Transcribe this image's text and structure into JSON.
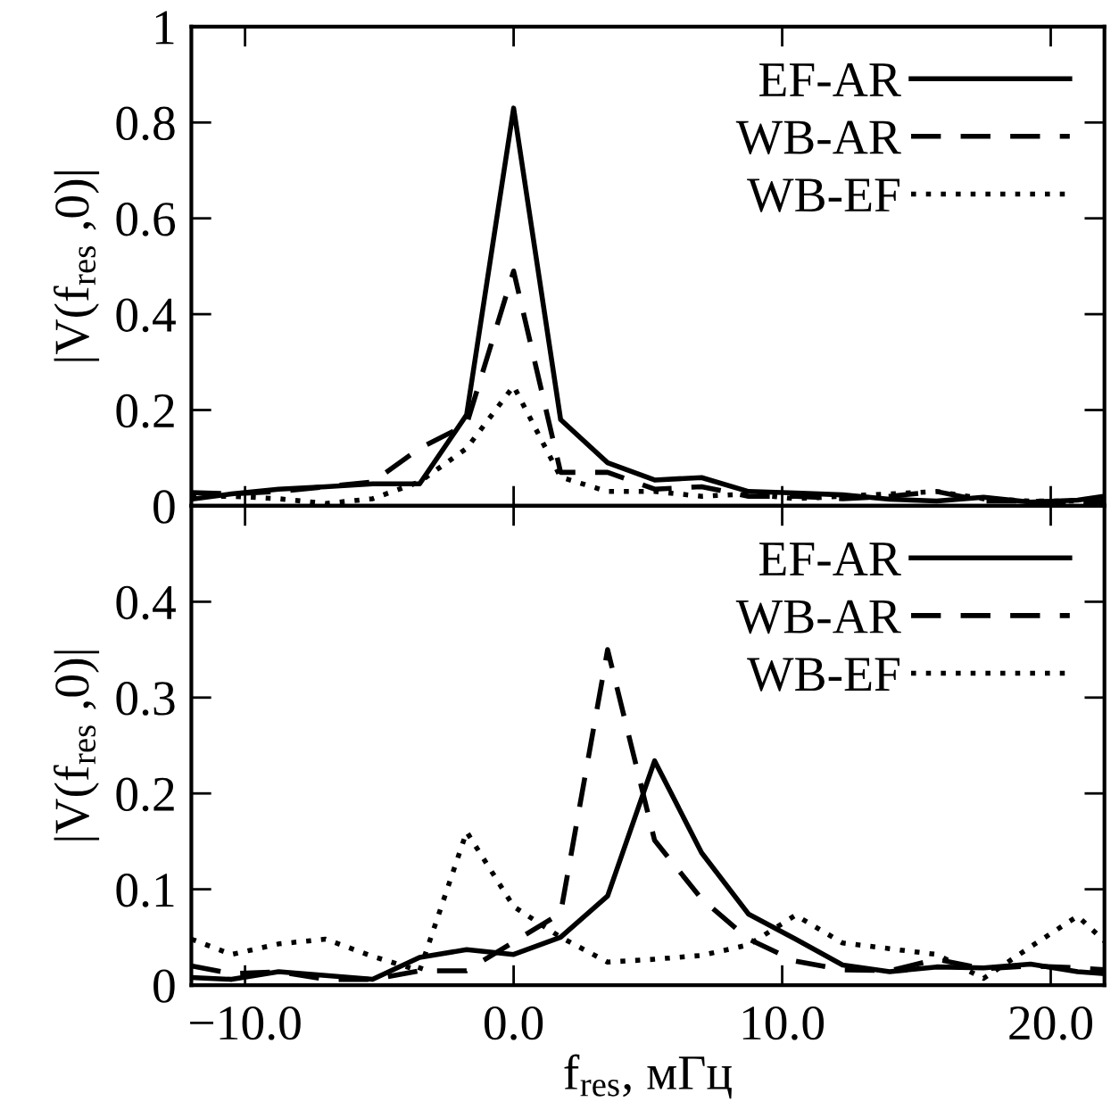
{
  "chart_data": [
    {
      "type": "line",
      "ylabel": "|V(f$_{res}$ ,0)|",
      "x": [
        -12,
        -10.5,
        -8.75,
        -7,
        -5.25,
        -3.5,
        -1.75,
        0,
        1.75,
        3.5,
        5.25,
        7,
        8.75,
        10.5,
        12.25,
        14,
        15.75,
        17.5,
        19.25,
        21,
        22
      ],
      "series": [
        {
          "name": "EF-AR",
          "color": "#000000",
          "line_style": "solid",
          "values": [
            0.014,
            0.025,
            0.035,
            0.04,
            0.046,
            0.046,
            0.19,
            0.83,
            0.18,
            0.09,
            0.054,
            0.059,
            0.03,
            0.027,
            0.023,
            0.014,
            0.01,
            0.018,
            0.008,
            0.012,
            0.02
          ]
        },
        {
          "name": "WB-AR",
          "color": "#000000",
          "line_style": "dashed",
          "values": [
            0.028,
            0.025,
            0.03,
            0.04,
            0.05,
            0.12,
            0.17,
            0.49,
            0.07,
            0.07,
            0.035,
            0.04,
            0.02,
            0.02,
            0.015,
            0.02,
            0.03,
            0.01,
            0.01,
            0.005,
            0.01
          ]
        },
        {
          "name": "WB-EF",
          "color": "#000000",
          "line_style": "dotted",
          "values": [
            0.02,
            0.02,
            0.015,
            0.005,
            0.015,
            0.05,
            0.12,
            0.25,
            0.06,
            0.03,
            0.03,
            0.02,
            0.025,
            0.015,
            0.02,
            0.025,
            0.03,
            0.015,
            0.01,
            0.01,
            0.005
          ]
        }
      ],
      "xlim": [
        -12,
        22
      ],
      "xticks": [
        -10,
        0,
        10,
        20
      ],
      "ylim": [
        0,
        1
      ],
      "yticks": [
        0,
        0.2,
        0.4,
        0.6,
        0.8,
        1
      ],
      "tick_labels": "y",
      "legend": "top right",
      "grid": false
    },
    {
      "type": "line",
      "xlabel": "f$_{res}$, мГц",
      "ylabel": "|V(f$_{res}$ ,0)|",
      "x": [
        -12,
        -10.5,
        -8.75,
        -7,
        -5.25,
        -3.5,
        -1.75,
        0,
        1.75,
        3.5,
        5.25,
        7,
        8.75,
        10.5,
        12.25,
        14,
        15.75,
        17.5,
        19.25,
        21,
        22
      ],
      "series": [
        {
          "name": "EF-AR",
          "color": "#000000",
          "line_style": "solid",
          "values": [
            0.008,
            0.006,
            0.014,
            0.01,
            0.006,
            0.029,
            0.037,
            0.032,
            0.05,
            0.093,
            0.234,
            0.138,
            0.074,
            0.048,
            0.021,
            0.014,
            0.019,
            0.018,
            0.022,
            0.014,
            0.012
          ]
        },
        {
          "name": "WB-AR",
          "color": "#000000",
          "line_style": "dashed",
          "values": [
            0.02,
            0.012,
            0.014,
            0.006,
            0.006,
            0.015,
            0.015,
            0.045,
            0.075,
            0.35,
            0.151,
            0.09,
            0.048,
            0.025,
            0.016,
            0.015,
            0.027,
            0.017,
            0.02,
            0.018,
            0.016
          ]
        },
        {
          "name": "WB-EF",
          "color": "#000000",
          "line_style": "dotted",
          "values": [
            0.048,
            0.032,
            0.043,
            0.048,
            0.03,
            0.015,
            0.16,
            0.082,
            0.05,
            0.024,
            0.027,
            0.031,
            0.042,
            0.073,
            0.044,
            0.038,
            0.032,
            0.007,
            0.04,
            0.072,
            0.046
          ]
        }
      ],
      "xlim": [
        -12,
        22
      ],
      "xticks": [
        {
          "value": -10,
          "label": "−10.0"
        },
        {
          "value": 0,
          "label": "0.0"
        },
        {
          "value": 10,
          "label": "10.0"
        },
        {
          "value": 20,
          "label": "20.0"
        }
      ],
      "ylim": [
        0,
        0.5
      ],
      "yticks": [
        0,
        0.1,
        0.2,
        0.3,
        0.4
      ],
      "legend": "top right",
      "grid": false
    }
  ]
}
